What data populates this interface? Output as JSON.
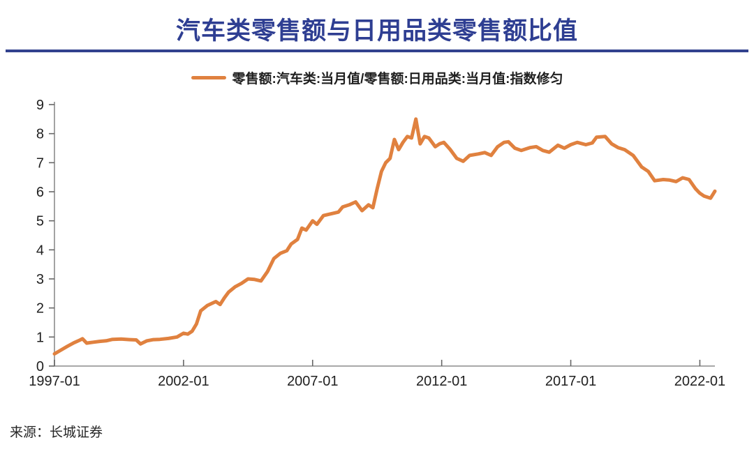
{
  "header": {
    "title": "汽车类零售额与日用品类零售额比值"
  },
  "legend": {
    "label": "零售额:汽车类:当月值/零售额:日用品类:当月值:指数修匀",
    "swatch_color": "#E0813F"
  },
  "footer": {
    "source": "来源：长城证券"
  },
  "colors": {
    "title": "#2E3E92",
    "rule": "#32428E",
    "line": "#E0813F",
    "axis": "#8C8C8C",
    "tick": "#666666",
    "tick_label": "#1f1f1f"
  },
  "chart_data": {
    "type": "line",
    "title": "汽车类零售额与日用品类零售额比值",
    "xlabel": "",
    "ylabel": "",
    "ylim": [
      0,
      9
    ],
    "xlim": [
      "1997-01",
      "2022-08"
    ],
    "grid": false,
    "legend_position": "top",
    "x_ticks": [
      "1997-01",
      "2002-01",
      "2007-01",
      "2012-01",
      "2017-01",
      "2022-01"
    ],
    "y_ticks": [
      0,
      1,
      2,
      3,
      4,
      5,
      6,
      7,
      8,
      9
    ],
    "series": [
      {
        "name": "零售额:汽车类:当月值/零售额:日用品类:当月值:指数修匀",
        "color": "#E0813F",
        "points": [
          [
            "1997-01",
            0.42
          ],
          [
            "1997-04",
            0.55
          ],
          [
            "1997-07",
            0.68
          ],
          [
            "1997-10",
            0.8
          ],
          [
            "1998-01",
            0.9
          ],
          [
            "1998-02",
            0.94
          ],
          [
            "1998-04",
            0.79
          ],
          [
            "1998-07",
            0.82
          ],
          [
            "1998-10",
            0.85
          ],
          [
            "1999-01",
            0.87
          ],
          [
            "1999-04",
            0.92
          ],
          [
            "1999-08",
            0.93
          ],
          [
            "1999-12",
            0.91
          ],
          [
            "2000-03",
            0.9
          ],
          [
            "2000-05",
            0.76
          ],
          [
            "2000-08",
            0.87
          ],
          [
            "2000-11",
            0.91
          ],
          [
            "2001-02",
            0.92
          ],
          [
            "2001-06",
            0.95
          ],
          [
            "2001-10",
            1.0
          ],
          [
            "2002-01",
            1.13
          ],
          [
            "2002-03",
            1.1
          ],
          [
            "2002-05",
            1.2
          ],
          [
            "2002-07",
            1.45
          ],
          [
            "2002-09",
            1.9
          ],
          [
            "2002-12",
            2.08
          ],
          [
            "2003-02",
            2.15
          ],
          [
            "2003-04",
            2.22
          ],
          [
            "2003-06",
            2.12
          ],
          [
            "2003-08",
            2.35
          ],
          [
            "2003-10",
            2.55
          ],
          [
            "2004-01",
            2.73
          ],
          [
            "2004-04",
            2.85
          ],
          [
            "2004-07",
            3.0
          ],
          [
            "2004-10",
            2.98
          ],
          [
            "2005-01",
            2.93
          ],
          [
            "2005-04",
            3.25
          ],
          [
            "2005-07",
            3.7
          ],
          [
            "2005-10",
            3.88
          ],
          [
            "2006-01",
            3.97
          ],
          [
            "2006-03",
            4.2
          ],
          [
            "2006-06",
            4.36
          ],
          [
            "2006-08",
            4.75
          ],
          [
            "2006-10",
            4.68
          ],
          [
            "2007-01",
            5.0
          ],
          [
            "2007-03",
            4.88
          ],
          [
            "2007-06",
            5.18
          ],
          [
            "2007-10",
            5.25
          ],
          [
            "2008-01",
            5.3
          ],
          [
            "2008-03",
            5.48
          ],
          [
            "2008-06",
            5.55
          ],
          [
            "2008-09",
            5.65
          ],
          [
            "2008-12",
            5.35
          ],
          [
            "2009-03",
            5.55
          ],
          [
            "2009-05",
            5.45
          ],
          [
            "2009-07",
            6.1
          ],
          [
            "2009-09",
            6.7
          ],
          [
            "2009-11",
            7.0
          ],
          [
            "2010-01",
            7.15
          ],
          [
            "2010-03",
            7.8
          ],
          [
            "2010-05",
            7.45
          ],
          [
            "2010-07",
            7.7
          ],
          [
            "2010-09",
            7.9
          ],
          [
            "2010-11",
            7.85
          ],
          [
            "2011-01",
            8.5
          ],
          [
            "2011-03",
            7.65
          ],
          [
            "2011-05",
            7.9
          ],
          [
            "2011-07",
            7.85
          ],
          [
            "2011-10",
            7.55
          ],
          [
            "2011-12",
            7.65
          ],
          [
            "2012-02",
            7.7
          ],
          [
            "2012-05",
            7.45
          ],
          [
            "2012-08",
            7.15
          ],
          [
            "2012-11",
            7.05
          ],
          [
            "2013-02",
            7.25
          ],
          [
            "2013-06",
            7.3
          ],
          [
            "2013-09",
            7.35
          ],
          [
            "2013-12",
            7.25
          ],
          [
            "2014-03",
            7.55
          ],
          [
            "2014-06",
            7.7
          ],
          [
            "2014-08",
            7.72
          ],
          [
            "2014-11",
            7.5
          ],
          [
            "2015-02",
            7.42
          ],
          [
            "2015-06",
            7.52
          ],
          [
            "2015-09",
            7.55
          ],
          [
            "2015-12",
            7.42
          ],
          [
            "2016-03",
            7.36
          ],
          [
            "2016-07",
            7.6
          ],
          [
            "2016-10",
            7.5
          ],
          [
            "2017-01",
            7.62
          ],
          [
            "2017-04",
            7.7
          ],
          [
            "2017-08",
            7.62
          ],
          [
            "2017-11",
            7.68
          ],
          [
            "2018-01",
            7.88
          ],
          [
            "2018-05",
            7.9
          ],
          [
            "2018-08",
            7.65
          ],
          [
            "2018-11",
            7.52
          ],
          [
            "2019-02",
            7.45
          ],
          [
            "2019-06",
            7.25
          ],
          [
            "2019-10",
            6.85
          ],
          [
            "2020-01",
            6.7
          ],
          [
            "2020-04",
            6.38
          ],
          [
            "2020-08",
            6.42
          ],
          [
            "2020-11",
            6.4
          ],
          [
            "2021-02",
            6.35
          ],
          [
            "2021-05",
            6.48
          ],
          [
            "2021-08",
            6.42
          ],
          [
            "2021-11",
            6.1
          ],
          [
            "2022-01",
            5.95
          ],
          [
            "2022-03",
            5.85
          ],
          [
            "2022-06",
            5.78
          ],
          [
            "2022-08",
            6.02
          ]
        ]
      }
    ]
  }
}
